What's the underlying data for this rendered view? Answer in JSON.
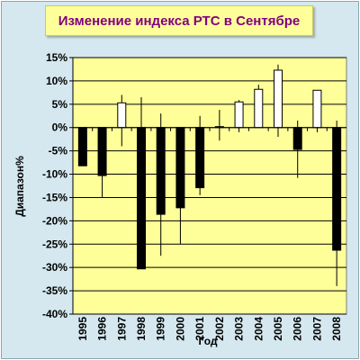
{
  "chart_data": {
    "type": "candlestick",
    "title": "Изменение индекса РТС в Сентябре",
    "xlabel": "Год",
    "ylabel": "Диапазон%",
    "ylim": [
      -40,
      15
    ],
    "yticks": [
      15,
      10,
      5,
      0,
      -5,
      -10,
      -15,
      -20,
      -25,
      -30,
      -35,
      -40
    ],
    "yticklabels": [
      "15%",
      "10%",
      "5%",
      "0%",
      "-5%",
      "-10%",
      "-15%",
      "-20%",
      "-25%",
      "-30%",
      "-35%",
      "-40%"
    ],
    "grid": true,
    "legend": "none",
    "colors": {
      "up": "#ffffff",
      "down": "#000000",
      "plot_bg": "#ffff99",
      "frame_bg": "#d5e8ef",
      "title_color": "#800080"
    },
    "categories": [
      "1995",
      "1996",
      "1997",
      "1998",
      "1999",
      "2000",
      "2001",
      "2002",
      "2003",
      "2004",
      "2005",
      "2006",
      "2007",
      "2008"
    ],
    "open": [
      0,
      0,
      0,
      0,
      0,
      0,
      0,
      0,
      0,
      0,
      0,
      0,
      0,
      0
    ],
    "close": [
      -8.2,
      -10.3,
      5.3,
      -30.3,
      -18.6,
      -17.2,
      -12.9,
      0.2,
      5.5,
      8.2,
      12.3,
      -4.7,
      8.0,
      -26.3
    ],
    "high": [
      0,
      0,
      7.0,
      6.5,
      3.0,
      0,
      2.5,
      3.8,
      5.9,
      9.2,
      13.5,
      1.5,
      8.0,
      1.5
    ],
    "low": [
      -8.2,
      -15.1,
      -4.0,
      -30.3,
      -27.5,
      -25.0,
      -14.5,
      -2.8,
      -1.0,
      0,
      -2.0,
      -10.8,
      -1.0,
      -34.0
    ]
  }
}
